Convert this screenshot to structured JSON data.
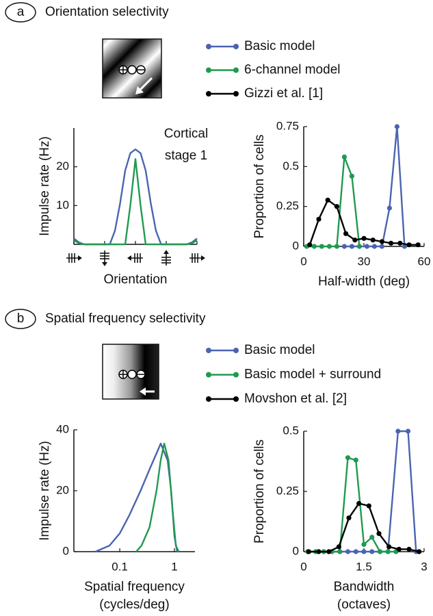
{
  "panels": [
    {
      "label": "a",
      "title": "Orientation selectivity"
    },
    {
      "label": "b",
      "title": "Spatial frequency selectivity"
    }
  ],
  "chart_data": [
    {
      "type": "line",
      "y_label": "Impulse rate (Hz)",
      "x_label": [
        "Orientation"
      ],
      "annotation": [
        "Cortical",
        "stage 1"
      ],
      "x": [
        -180,
        -165,
        -150,
        -135,
        -120,
        -105,
        -90,
        -75,
        -60,
        -45,
        -30,
        -15,
        0,
        15,
        30,
        45,
        60,
        75,
        90,
        105,
        120,
        135,
        150,
        165,
        180
      ],
      "series": [
        {
          "color": "#4a64b0",
          "values": [
            1.5,
            0.5,
            0,
            0,
            0,
            0,
            0,
            0,
            3.5,
            10.5,
            19,
            23.5,
            24.5,
            23.5,
            19,
            10.5,
            3.5,
            0,
            0,
            0,
            0,
            0,
            0,
            0.5,
            1.5
          ]
        },
        {
          "color": "#1f9a50",
          "values": [
            1,
            0.3,
            0,
            0,
            0,
            0,
            0,
            0,
            0,
            0,
            0,
            10,
            22,
            10,
            0,
            0,
            0,
            0,
            0,
            0,
            0,
            0,
            0,
            0.3,
            1
          ]
        }
      ],
      "xlim": [
        -180,
        180
      ],
      "xticks": [
        -180,
        -90,
        0,
        90,
        180
      ],
      "ylim": [
        0,
        30
      ],
      "yticks": [
        10,
        20
      ]
    },
    {
      "type": "line",
      "markers": true,
      "y_label": "Proportion of cells",
      "x_label": [
        "Half-width (deg)"
      ],
      "series": [
        {
          "name": "Basic model",
          "color": "#4a64b0",
          "x": [
            20.25,
            24,
            27.75,
            31.5,
            35.25,
            39,
            42.75,
            46.5,
            50.25
          ],
          "values": [
            0,
            0,
            0,
            0,
            0,
            0,
            0.24,
            0.75,
            0
          ]
        },
        {
          "name": "6-channel model",
          "color": "#1f9a50",
          "x": [
            1.5,
            5.25,
            9,
            12.75,
            16.5,
            20.25,
            24,
            27.75
          ],
          "values": [
            0,
            0,
            0,
            0,
            0,
            0.56,
            0.44,
            0
          ]
        },
        {
          "name": "Gizzi et al. [1]",
          "color": "#000000",
          "x": [
            3,
            7.5,
            12,
            16.5,
            21,
            25.5,
            30,
            34.5,
            39,
            43.5,
            48,
            52.5,
            57
          ],
          "values": [
            0.01,
            0.17,
            0.29,
            0.25,
            0.08,
            0.04,
            0.05,
            0.04,
            0.03,
            0.02,
            0.02,
            0.01,
            0.01
          ]
        }
      ],
      "xlim": [
        0,
        60
      ],
      "xticks": [
        0,
        30,
        60
      ],
      "ylim": [
        0,
        0.75
      ],
      "yticks": [
        0,
        0.25,
        0.5,
        0.75
      ]
    },
    {
      "type": "line",
      "x_scale": "log",
      "y_label": "Impulse rate (Hz)",
      "x_label": [
        "Spatial frequency",
        "(cycles/deg)"
      ],
      "series": [
        {
          "color": "#4a64b0",
          "x": [
            0.036,
            0.065,
            0.1,
            0.15,
            0.24,
            0.37,
            0.49,
            0.56,
            0.75,
            0.87,
            1.0,
            1.12
          ],
          "values": [
            0,
            2,
            6,
            12,
            20,
            28,
            33,
            35.5,
            30,
            20,
            5,
            0
          ]
        },
        {
          "color": "#1f9a50",
          "x": [
            0.2,
            0.25,
            0.35,
            0.47,
            0.56,
            0.65,
            0.78,
            0.92,
            1.06,
            1.2
          ],
          "values": [
            0,
            2,
            8,
            20,
            30,
            35.5,
            30,
            14,
            2,
            0
          ]
        }
      ],
      "xlim": [
        0.0145,
        2.37
      ],
      "xticks": [
        0.1,
        1
      ],
      "ylim": [
        0,
        40
      ],
      "yticks": [
        0,
        20,
        40
      ]
    },
    {
      "type": "line",
      "markers": true,
      "y_label": "Proportion of cells",
      "x_label": [
        "Bandwidth",
        "(octaves)"
      ],
      "series": [
        {
          "name": "Basic model",
          "color": "#4a64b0",
          "x": [
            0.1,
            0.3,
            0.5,
            0.7,
            0.9,
            1.1,
            1.3,
            1.5,
            1.7,
            1.9,
            2.1,
            2.35,
            2.6,
            2.8
          ],
          "values": [
            0,
            0,
            0,
            0,
            0,
            0,
            0,
            0,
            0,
            0,
            0,
            0.5,
            0.5,
            0
          ]
        },
        {
          "name": "Basic model + surround",
          "color": "#1f9a50",
          "x": [
            0.1,
            0.3,
            0.5,
            0.7,
            0.9,
            1.1,
            1.3,
            1.5,
            1.7,
            1.9,
            2.1,
            2.3
          ],
          "values": [
            0,
            0,
            0,
            0,
            0,
            0.39,
            0.38,
            0.03,
            0.06,
            0,
            0,
            0
          ]
        },
        {
          "name": "Movshon et al. [2]",
          "color": "#000000",
          "x": [
            0.125,
            0.375,
            0.625,
            0.875,
            1.125,
            1.375,
            1.625,
            1.875,
            2.125,
            2.375,
            2.625,
            2.875
          ],
          "values": [
            0,
            0,
            0,
            0.02,
            0.14,
            0.2,
            0.19,
            0.075,
            0.02,
            0.01,
            0.01,
            0
          ]
        }
      ],
      "xlim": [
        0,
        3
      ],
      "xticks": [
        0,
        1.5,
        3
      ],
      "ylim": [
        0,
        0.5
      ],
      "yticks": [
        0,
        0.25,
        0.5
      ]
    }
  ]
}
